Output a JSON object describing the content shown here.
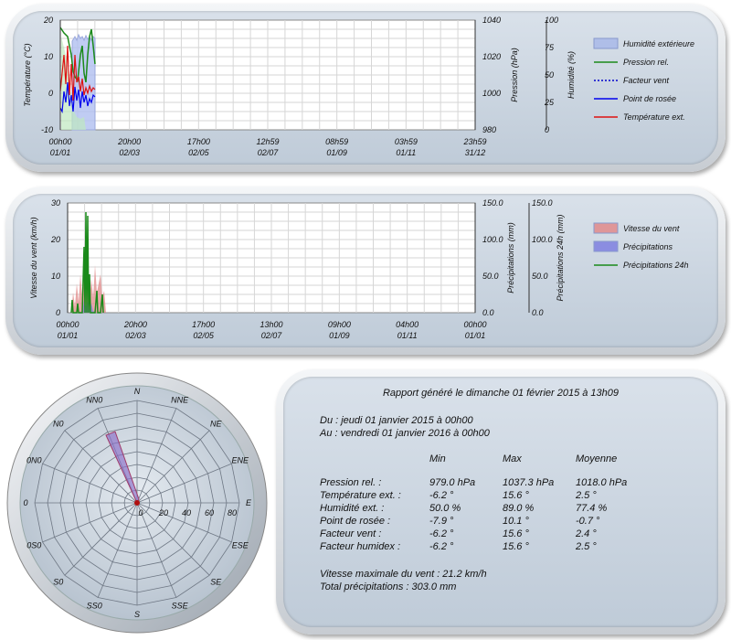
{
  "top_chart": {
    "left_axis_label": "Température (°C)",
    "left_ticks": [
      "20",
      "10",
      "0",
      "-10"
    ],
    "mid_axis_label": "Pression (hPa)",
    "mid_ticks": [
      "1040",
      "1020",
      "1000",
      "980"
    ],
    "right_axis_label": "Humidité (%)",
    "right_ticks": [
      "100",
      "75",
      "50",
      "25",
      "0"
    ],
    "x_ticks": [
      {
        "time": "00h00",
        "date": "01/01"
      },
      {
        "time": "20h00",
        "date": "02/03"
      },
      {
        "time": "17h00",
        "date": "02/05"
      },
      {
        "time": "12h59",
        "date": "02/07"
      },
      {
        "time": "08h59",
        "date": "01/09"
      },
      {
        "time": "03h59",
        "date": "01/11"
      },
      {
        "time": "23h59",
        "date": "31/12"
      }
    ],
    "legend": [
      {
        "label": "Humidité extérieure",
        "color": "#a8b8e8",
        "style": "box"
      },
      {
        "label": "Pression rel.",
        "color": "#1a8a1a",
        "style": "line"
      },
      {
        "label": "Facteur vent",
        "color": "#0000cc",
        "style": "dotted"
      },
      {
        "label": "Point de rosée",
        "color": "#0000ee",
        "style": "line"
      },
      {
        "label": "Température ext.",
        "color": "#dd1111",
        "style": "line"
      }
    ]
  },
  "mid_chart": {
    "left_axis_label": "Vitesse du vent (km/h)",
    "left_ticks": [
      "30",
      "20",
      "10",
      "0"
    ],
    "mid_axis_label": "Précipitations (mm)",
    "mid_ticks": [
      "150.0",
      "100.0",
      "50.0",
      "0.0"
    ],
    "right_axis_label": "Précipitations 24h (mm)",
    "right_ticks": [
      "150.0",
      "100.0",
      "50.0",
      "0.0"
    ],
    "x_ticks": [
      {
        "time": "00h00",
        "date": "01/01"
      },
      {
        "time": "20h00",
        "date": "02/03"
      },
      {
        "time": "17h00",
        "date": "02/05"
      },
      {
        "time": "13h00",
        "date": "02/07"
      },
      {
        "time": "09h00",
        "date": "01/09"
      },
      {
        "time": "04h00",
        "date": "01/11"
      },
      {
        "time": "00h00",
        "date": "01/01"
      }
    ],
    "legend": [
      {
        "label": "Vitesse du vent",
        "color": "#e08a8a",
        "style": "box"
      },
      {
        "label": "Précipitations",
        "color": "#7f7fe0",
        "style": "box"
      },
      {
        "label": "Précipitations 24h",
        "color": "#1a8a1a",
        "style": "line"
      }
    ]
  },
  "wind_rose": {
    "directions": [
      "N",
      "NNE",
      "NE",
      "ENE",
      "E",
      "ESE",
      "SE",
      "SSE",
      "S",
      "SS0",
      "S0",
      "0S0",
      "0",
      "0N0",
      "N0",
      "NN0"
    ],
    "scale_labels": [
      "0",
      "20",
      "40",
      "60",
      "80"
    ]
  },
  "report": {
    "title": "Rapport généré le dimanche 01 février 2015 à 13h09",
    "from": "Du : jeudi 01 janvier 2015 à 00h00",
    "to": "Au : vendredi 01 janvier 2016 à 00h00",
    "headers": [
      "Min",
      "Max",
      "Moyenne"
    ],
    "rows": [
      {
        "label": "Pression rel. :",
        "min": "979.0 hPa",
        "max": "1037.3 hPa",
        "avg": "1018.0 hPa"
      },
      {
        "label": "Température ext. :",
        "min": "-6.2 °",
        "max": "15.6 °",
        "avg": "2.5 °"
      },
      {
        "label": "Humidité ext. :",
        "min": "50.0 %",
        "max": "89.0 %",
        "avg": "77.4 %"
      },
      {
        "label": "Point de rosée :",
        "min": "-7.9 °",
        "max": "10.1 °",
        "avg": "-0.7 °"
      },
      {
        "label": "Facteur vent :",
        "min": "-6.2 °",
        "max": "15.6 °",
        "avg": "2.4 °"
      },
      {
        "label": "Facteur humidex :",
        "min": "-6.2 °",
        "max": "15.6 °",
        "avg": "2.5 °"
      }
    ],
    "max_wind": "Vitesse maximale du vent : 21.2 km/h",
    "total_rain": "Total précipitations : 303.0 mm"
  }
}
